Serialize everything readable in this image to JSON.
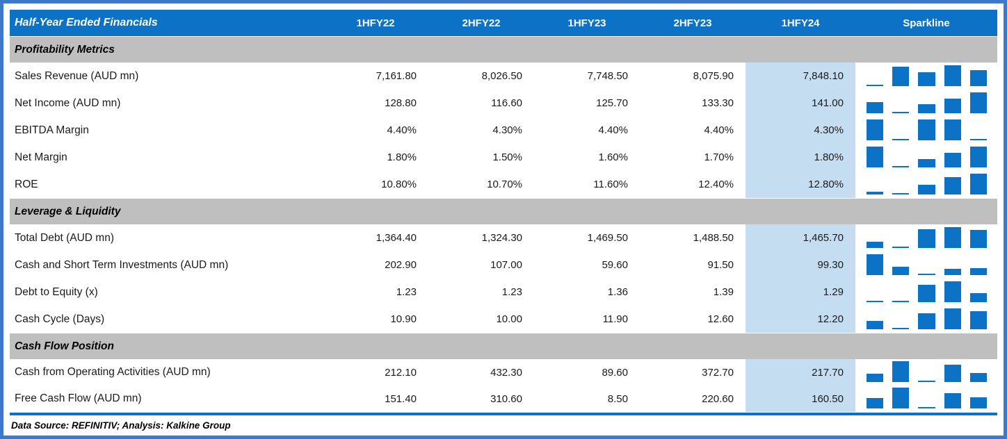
{
  "table": {
    "header": {
      "title": "Half-Year Ended Financials",
      "columns": [
        "1HFY22",
        "2HFY22",
        "1HFY23",
        "2HFY23",
        "1HFY24"
      ],
      "sparkline_label": "Sparkline",
      "highlight_column": "1HFY24"
    },
    "sections": [
      {
        "title": "Profitability Metrics",
        "rows": [
          {
            "label": "Sales Revenue (AUD mn)",
            "values": [
              "7,161.80",
              "8,026.50",
              "7,748.50",
              "8,075.90",
              "7,848.10"
            ]
          },
          {
            "label": "Net Income (AUD mn)",
            "values": [
              "128.80",
              "116.60",
              "125.70",
              "133.30",
              "141.00"
            ]
          },
          {
            "label": "EBITDA Margin",
            "values": [
              "4.40%",
              "4.30%",
              "4.40%",
              "4.40%",
              "4.30%"
            ]
          },
          {
            "label": "Net Margin",
            "values": [
              "1.80%",
              "1.50%",
              "1.60%",
              "1.70%",
              "1.80%"
            ]
          },
          {
            "label": "ROE",
            "values": [
              "10.80%",
              "10.70%",
              "11.60%",
              "12.40%",
              "12.80%"
            ]
          }
        ]
      },
      {
        "title": "Leverage & Liquidity",
        "rows": [
          {
            "label": "Total Debt (AUD mn)",
            "values": [
              "1,364.40",
              "1,324.30",
              "1,469.50",
              "1,488.50",
              "1,465.70"
            ]
          },
          {
            "label": "Cash and Short Term Investments (AUD mn)",
            "values": [
              "202.90",
              "107.00",
              "59.60",
              "91.50",
              "99.30"
            ]
          },
          {
            "label": "Debt to Equity (x)",
            "values": [
              "1.23",
              "1.23",
              "1.36",
              "1.39",
              "1.29"
            ]
          },
          {
            "label": "Cash Cycle (Days)",
            "values": [
              "10.90",
              "10.00",
              "11.90",
              "12.60",
              "12.20"
            ]
          }
        ]
      },
      {
        "title": "Cash Flow Position",
        "rows": [
          {
            "label": "Cash from Operating Activities (AUD mn)",
            "values": [
              "212.10",
              "432.30",
              "89.60",
              "372.70",
              "217.70"
            ]
          },
          {
            "label": "Free Cash Flow (AUD mn)",
            "values": [
              "151.40",
              "310.60",
              "8.50",
              "220.60",
              "160.50"
            ]
          }
        ]
      }
    ],
    "footer": "Data Source: REFINITIV; Analysis: Kalkine Group"
  },
  "colors": {
    "header_blue": "#0b72c6",
    "border_blue": "#3d79c6",
    "section_gray": "#bfbfbf",
    "highlight_blue": "#c5ddf1",
    "sparkline_bar": "#0b72c6"
  },
  "chart_data": [
    {
      "type": "bar",
      "title": "Sales Revenue (AUD mn) sparkline",
      "categories": [
        "1HFY22",
        "2HFY22",
        "1HFY23",
        "2HFY23",
        "1HFY24"
      ],
      "values": [
        7161.8,
        8026.5,
        7748.5,
        8075.9,
        7848.1
      ]
    },
    {
      "type": "bar",
      "title": "Net Income (AUD mn) sparkline",
      "categories": [
        "1HFY22",
        "2HFY22",
        "1HFY23",
        "2HFY23",
        "1HFY24"
      ],
      "values": [
        128.8,
        116.6,
        125.7,
        133.3,
        141.0
      ]
    },
    {
      "type": "bar",
      "title": "EBITDA Margin sparkline",
      "categories": [
        "1HFY22",
        "2HFY22",
        "1HFY23",
        "2HFY23",
        "1HFY24"
      ],
      "values": [
        4.4,
        4.3,
        4.4,
        4.4,
        4.3
      ]
    },
    {
      "type": "bar",
      "title": "Net Margin sparkline",
      "categories": [
        "1HFY22",
        "2HFY22",
        "1HFY23",
        "2HFY23",
        "1HFY24"
      ],
      "values": [
        1.8,
        1.5,
        1.6,
        1.7,
        1.8
      ]
    },
    {
      "type": "bar",
      "title": "ROE sparkline",
      "categories": [
        "1HFY22",
        "2HFY22",
        "1HFY23",
        "2HFY23",
        "1HFY24"
      ],
      "values": [
        10.8,
        10.7,
        11.6,
        12.4,
        12.8
      ]
    },
    {
      "type": "bar",
      "title": "Total Debt (AUD mn) sparkline",
      "categories": [
        "1HFY22",
        "2HFY22",
        "1HFY23",
        "2HFY23",
        "1HFY24"
      ],
      "values": [
        1364.4,
        1324.3,
        1469.5,
        1488.5,
        1465.7
      ]
    },
    {
      "type": "bar",
      "title": "Cash and Short Term Investments (AUD mn) sparkline",
      "categories": [
        "1HFY22",
        "2HFY22",
        "1HFY23",
        "2HFY23",
        "1HFY24"
      ],
      "values": [
        202.9,
        107.0,
        59.6,
        91.5,
        99.3
      ]
    },
    {
      "type": "bar",
      "title": "Debt to Equity (x) sparkline",
      "categories": [
        "1HFY22",
        "2HFY22",
        "1HFY23",
        "2HFY23",
        "1HFY24"
      ],
      "values": [
        1.23,
        1.23,
        1.36,
        1.39,
        1.29
      ]
    },
    {
      "type": "bar",
      "title": "Cash Cycle (Days) sparkline",
      "categories": [
        "1HFY22",
        "2HFY22",
        "1HFY23",
        "2HFY23",
        "1HFY24"
      ],
      "values": [
        10.9,
        10.0,
        11.9,
        12.6,
        12.2
      ]
    },
    {
      "type": "bar",
      "title": "Cash from Operating Activities (AUD mn) sparkline",
      "categories": [
        "1HFY22",
        "2HFY22",
        "1HFY23",
        "2HFY23",
        "1HFY24"
      ],
      "values": [
        212.1,
        432.3,
        89.6,
        372.7,
        217.7
      ]
    },
    {
      "type": "bar",
      "title": "Free Cash Flow (AUD mn) sparkline",
      "categories": [
        "1HFY22",
        "2HFY22",
        "1HFY23",
        "2HFY23",
        "1HFY24"
      ],
      "values": [
        151.4,
        310.6,
        8.5,
        220.6,
        160.5
      ]
    }
  ]
}
